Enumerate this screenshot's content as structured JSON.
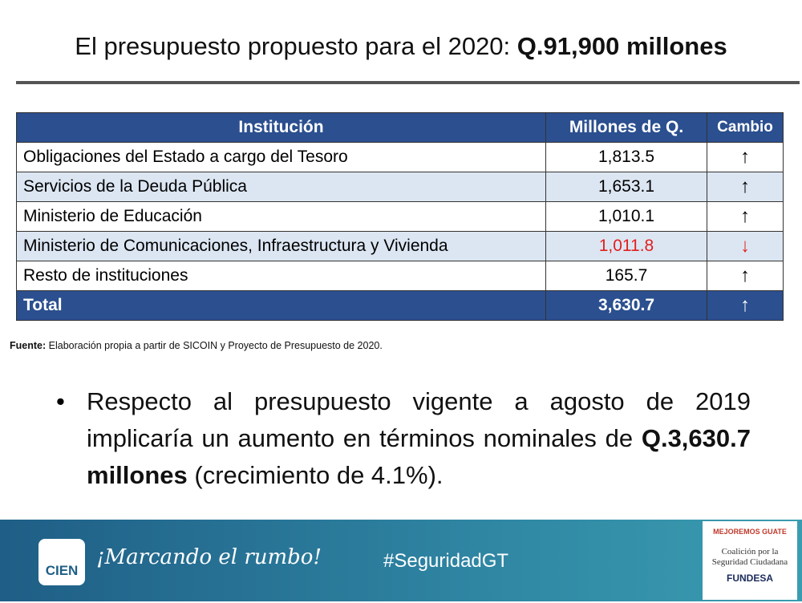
{
  "header": {
    "title": "El presupuesto propuesto para el 2020:",
    "title_bold": "Q.91,900 millones"
  },
  "table": {
    "columns": [
      "Institución",
      "Millones de Q.",
      "Cambio"
    ],
    "rows": [
      [
        "Obligaciones del Estado a cargo del Tesoro",
        "1,813.5",
        "↑"
      ],
      [
        "Servicios de la Deuda Pública",
        "1,653.1",
        "↑"
      ],
      [
        "Ministerio de Educación",
        "1,010.1",
        "↑"
      ],
      [
        "Ministerio de Comunicaciones, Infraestructura y Vivienda",
        "1,011.8",
        "↓"
      ],
      [
        "Resto de instituciones",
        "165.7",
        "↑"
      ]
    ],
    "total": [
      "Total",
      "3,630.7",
      "↑"
    ]
  },
  "source": {
    "label": "Fuente:",
    "text": "Elaboración propia a partir de SICOIN y Proyecto de Presupuesto de 2020."
  },
  "bullet": {
    "text": "Respecto al presupuesto vigente a agosto de 2019 implicaría un aumento en términos nominales de",
    "bold": "Q.3,630.7 millones",
    "tail": "(crecimiento de 4.1%)."
  },
  "footer": {
    "logo": "CIEN",
    "slogan": "¡Marcando el rumbo!",
    "hashtag": "#SeguridadGT",
    "partner_top": "MEJOREMOS GUATE",
    "partner_mid": "Coalición por la Seguridad Ciudadana",
    "partner_bottom": "FUNDESA"
  }
}
